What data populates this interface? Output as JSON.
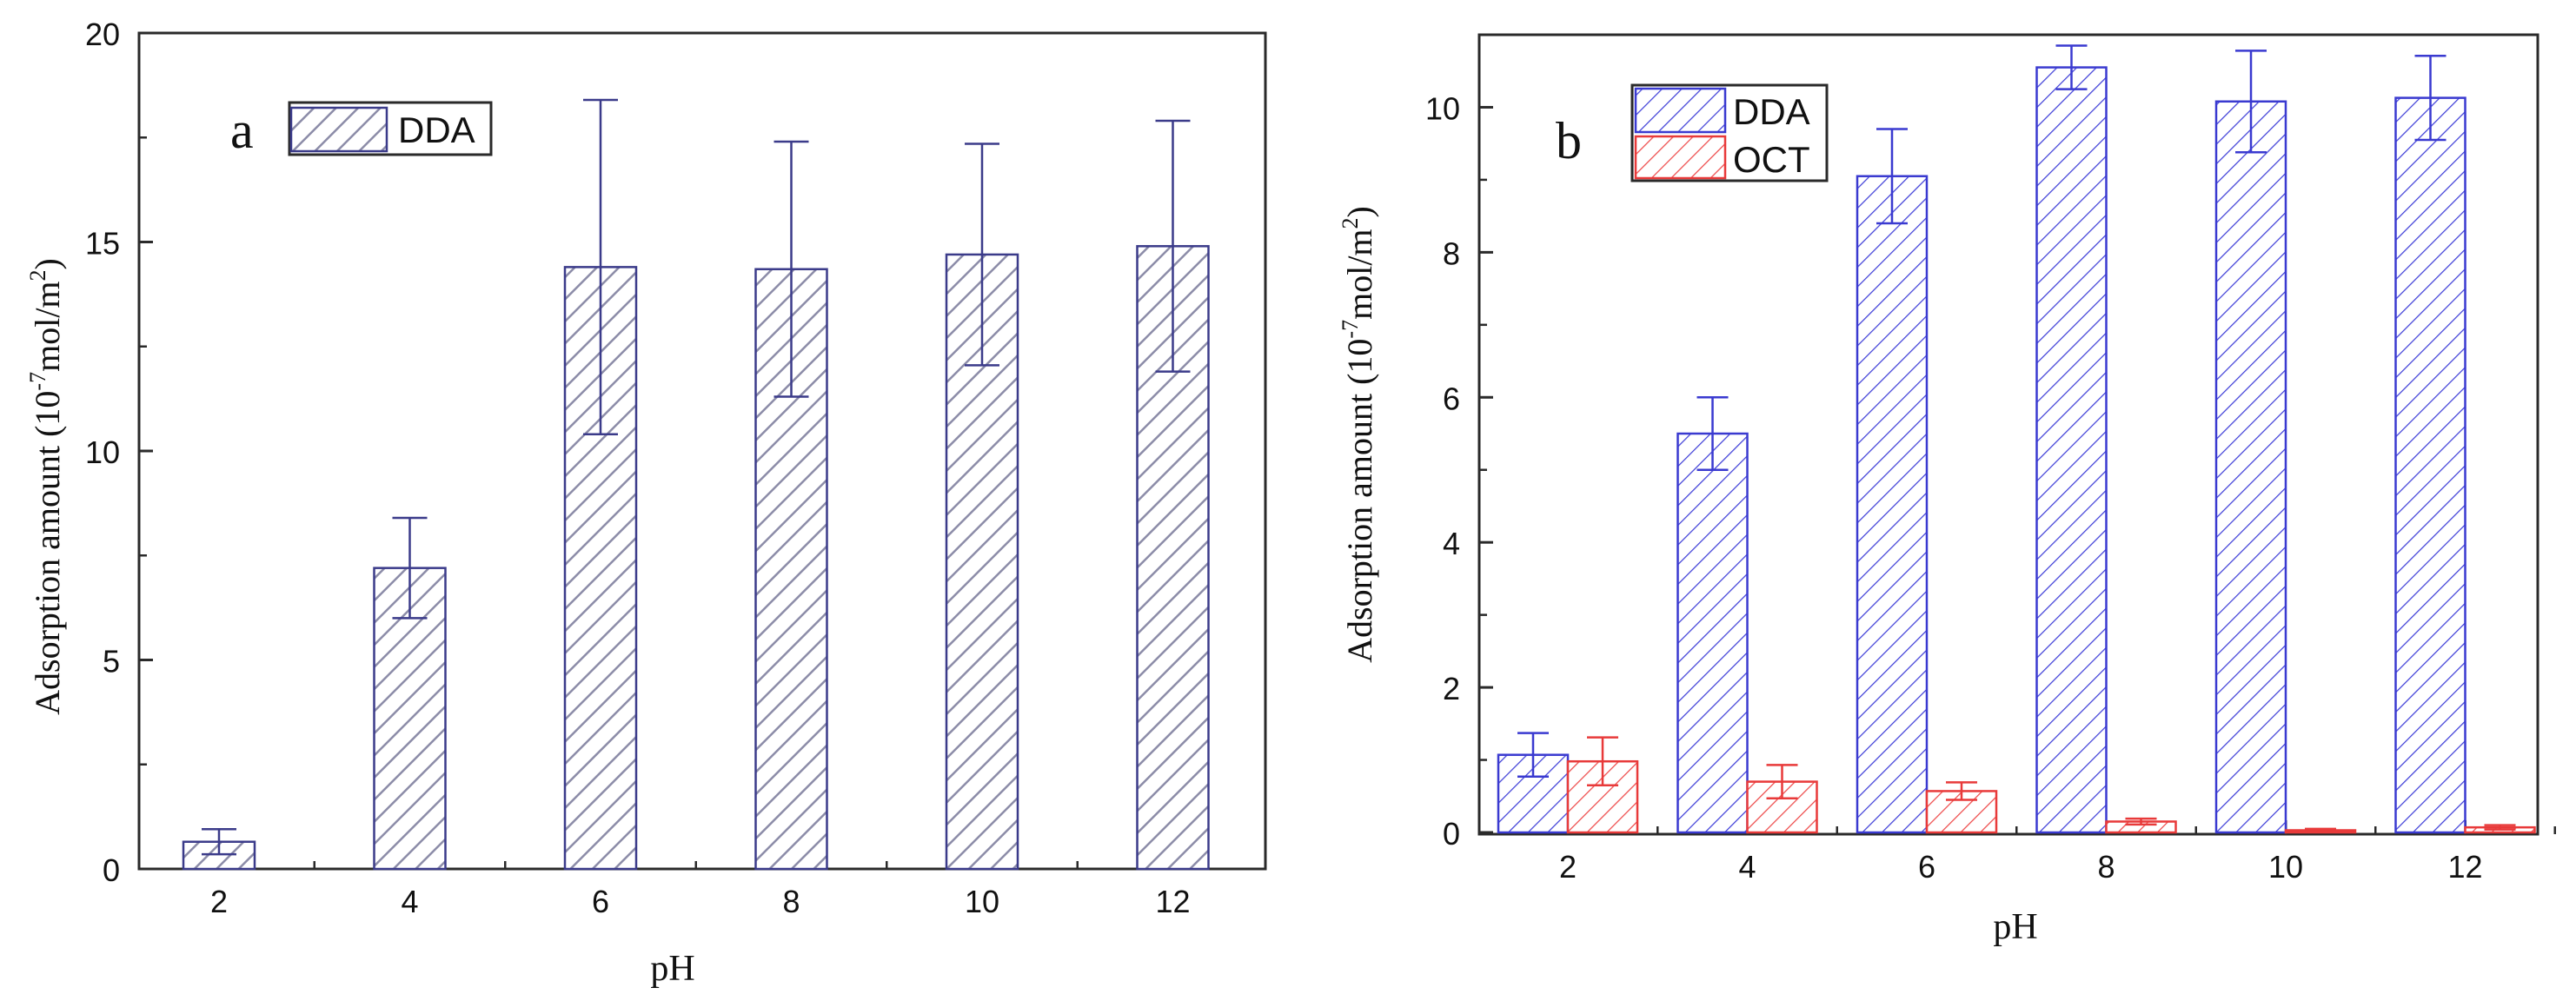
{
  "chart_data": [
    {
      "type": "bar",
      "panel_label": "a",
      "categories": [
        "2",
        "4",
        "6",
        "8",
        "10",
        "12"
      ],
      "series": [
        {
          "name": "DDA",
          "values": [
            0.65,
            7.2,
            14.4,
            14.35,
            14.7,
            14.9
          ],
          "errors": [
            0.3,
            1.2,
            4.0,
            3.05,
            2.65,
            3.0
          ],
          "color": "#3b3b8a",
          "fill": "#9a9ab0"
        }
      ],
      "xlabel": "pH",
      "ylabel_main": "Adsorption amount (10",
      "ylabel_sup": "-7",
      "ylabel_mid": "mol/m",
      "ylabel_sup2": "2",
      "ylabel_end": ")",
      "yticks": [
        "0",
        "5",
        "10",
        "15",
        "20"
      ],
      "ylim": [
        0,
        20
      ],
      "legend_position": "top-left"
    },
    {
      "type": "bar",
      "panel_label": "b",
      "categories": [
        "2",
        "4",
        "6",
        "8",
        "10",
        "12"
      ],
      "series": [
        {
          "name": "DDA",
          "values": [
            1.07,
            5.5,
            9.05,
            10.55,
            10.08,
            10.13
          ],
          "errors": [
            0.3,
            0.5,
            0.65,
            0.3,
            0.7,
            0.58
          ],
          "color": "#3a3ad0",
          "fill": "#3a3ad0"
        },
        {
          "name": "OCT",
          "values": [
            0.98,
            0.7,
            0.57,
            0.15,
            0.03,
            0.07
          ],
          "errors": [
            0.33,
            0.23,
            0.12,
            0.04,
            0.02,
            0.03
          ],
          "color": "#e83a3a",
          "fill": "#e83a3a"
        }
      ],
      "xlabel": "pH",
      "ylabel_main": "Adsorption amount (10",
      "ylabel_sup": "-7",
      "ylabel_mid": "mol/m",
      "ylabel_sup2": "2",
      "ylabel_end": ")",
      "yticks": [
        "0",
        "2",
        "4",
        "6",
        "8",
        "10"
      ],
      "ylim": [
        0,
        11
      ],
      "legend_position": "top-left"
    }
  ]
}
